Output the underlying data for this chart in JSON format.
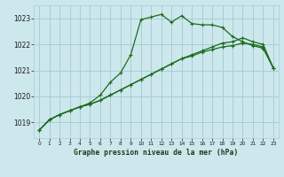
{
  "title": "Graphe pression niveau de la mer (hPa)",
  "bg_color": "#cce8ed",
  "grid_color": "#aacdd4",
  "line_color": "#1e6b1e",
  "xlim": [
    -0.5,
    23.5
  ],
  "ylim": [
    1018.4,
    1023.5
  ],
  "yticks": [
    1019,
    1020,
    1021,
    1022,
    1023
  ],
  "xticks": [
    0,
    1,
    2,
    3,
    4,
    5,
    6,
    7,
    8,
    9,
    10,
    11,
    12,
    13,
    14,
    15,
    16,
    17,
    18,
    19,
    20,
    21,
    22,
    23
  ],
  "series1_x": [
    0,
    1,
    2,
    3,
    4,
    5,
    6,
    7,
    8,
    9,
    10,
    11,
    12,
    13,
    14,
    15,
    16,
    17,
    18,
    19,
    20,
    21,
    22,
    23
  ],
  "series1_y": [
    1018.7,
    1019.1,
    1019.3,
    1019.45,
    1019.6,
    1019.75,
    1020.05,
    1020.55,
    1020.9,
    1021.6,
    1022.95,
    1023.05,
    1023.15,
    1022.85,
    1023.1,
    1022.8,
    1022.75,
    1022.75,
    1022.65,
    1022.3,
    1022.1,
    1021.95,
    1021.85,
    1021.1
  ],
  "series2_x": [
    0,
    1,
    2,
    3,
    4,
    5,
    6,
    7,
    8,
    9,
    10,
    11,
    12,
    13,
    14,
    15,
    16,
    17,
    18,
    19,
    20,
    21,
    22,
    23
  ],
  "series2_y": [
    1018.7,
    1019.1,
    1019.3,
    1019.45,
    1019.6,
    1019.7,
    1019.85,
    1020.05,
    1020.25,
    1020.45,
    1020.65,
    1020.85,
    1021.05,
    1021.25,
    1021.45,
    1021.6,
    1021.75,
    1021.9,
    1022.05,
    1022.1,
    1022.25,
    1022.1,
    1022.0,
    1021.1
  ],
  "series3_x": [
    0,
    1,
    2,
    3,
    4,
    5,
    6,
    7,
    8,
    9,
    10,
    11,
    12,
    13,
    14,
    15,
    16,
    17,
    18,
    19,
    20,
    21,
    22,
    23
  ],
  "series3_y": [
    1018.7,
    1019.1,
    1019.3,
    1019.45,
    1019.6,
    1019.7,
    1019.85,
    1020.05,
    1020.25,
    1020.45,
    1020.65,
    1020.85,
    1021.05,
    1021.25,
    1021.45,
    1021.55,
    1021.7,
    1021.8,
    1021.9,
    1021.95,
    1022.05,
    1022.0,
    1021.9,
    1021.1
  ]
}
